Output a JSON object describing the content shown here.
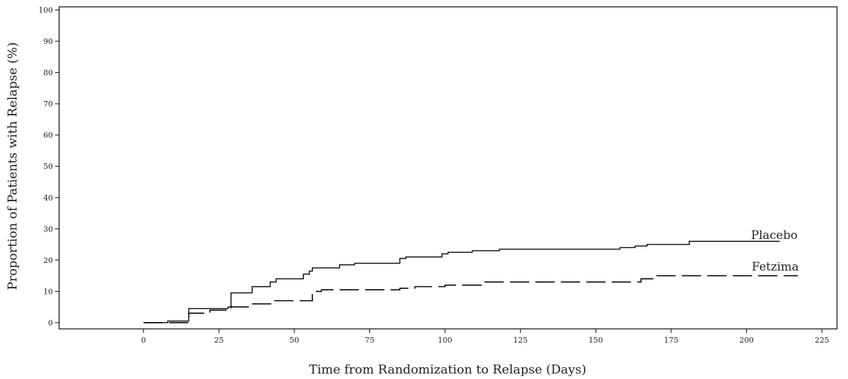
{
  "chart_data": {
    "type": "line",
    "title": "",
    "xlabel": "Time from Randomization to Relapse (Days)",
    "ylabel": "Proportion of Patients with Relapse (%)",
    "xlim": [
      -28,
      230
    ],
    "ylim": [
      -2,
      101
    ],
    "xticks": [
      0,
      25,
      50,
      75,
      100,
      125,
      150,
      175,
      200,
      225
    ],
    "yticks": [
      0,
      10,
      20,
      30,
      40,
      50,
      60,
      70,
      80,
      90,
      100
    ],
    "grid": false,
    "legend": "none",
    "series": [
      {
        "name": "Placebo",
        "style": "solid",
        "color": "#000000",
        "step_points": [
          [
            0,
            0
          ],
          [
            8,
            0.5
          ],
          [
            15,
            4.5
          ],
          [
            28,
            5
          ],
          [
            29,
            9.5
          ],
          [
            36,
            11.5
          ],
          [
            42,
            13
          ],
          [
            44,
            14
          ],
          [
            53,
            15.5
          ],
          [
            55,
            16.5
          ],
          [
            56,
            17.5
          ],
          [
            65,
            18.5
          ],
          [
            70,
            19
          ],
          [
            85,
            20.5
          ],
          [
            87,
            21
          ],
          [
            99,
            22
          ],
          [
            101,
            22.5
          ],
          [
            109,
            23
          ],
          [
            118,
            23.5
          ],
          [
            158,
            24
          ],
          [
            163,
            24.5
          ],
          [
            167,
            25
          ],
          [
            181,
            26
          ],
          [
            211,
            26
          ]
        ]
      },
      {
        "name": "Fetzima",
        "style": "dashed",
        "color": "#000000",
        "step_points": [
          [
            0,
            0
          ],
          [
            15,
            3
          ],
          [
            22,
            4
          ],
          [
            29,
            5
          ],
          [
            35,
            6
          ],
          [
            43,
            7
          ],
          [
            56,
            9
          ],
          [
            57,
            10
          ],
          [
            59,
            10.5
          ],
          [
            85,
            11
          ],
          [
            90,
            11.5
          ],
          [
            100,
            12
          ],
          [
            112,
            13
          ],
          [
            165,
            14
          ],
          [
            170,
            15
          ],
          [
            217,
            15
          ]
        ]
      }
    ]
  }
}
